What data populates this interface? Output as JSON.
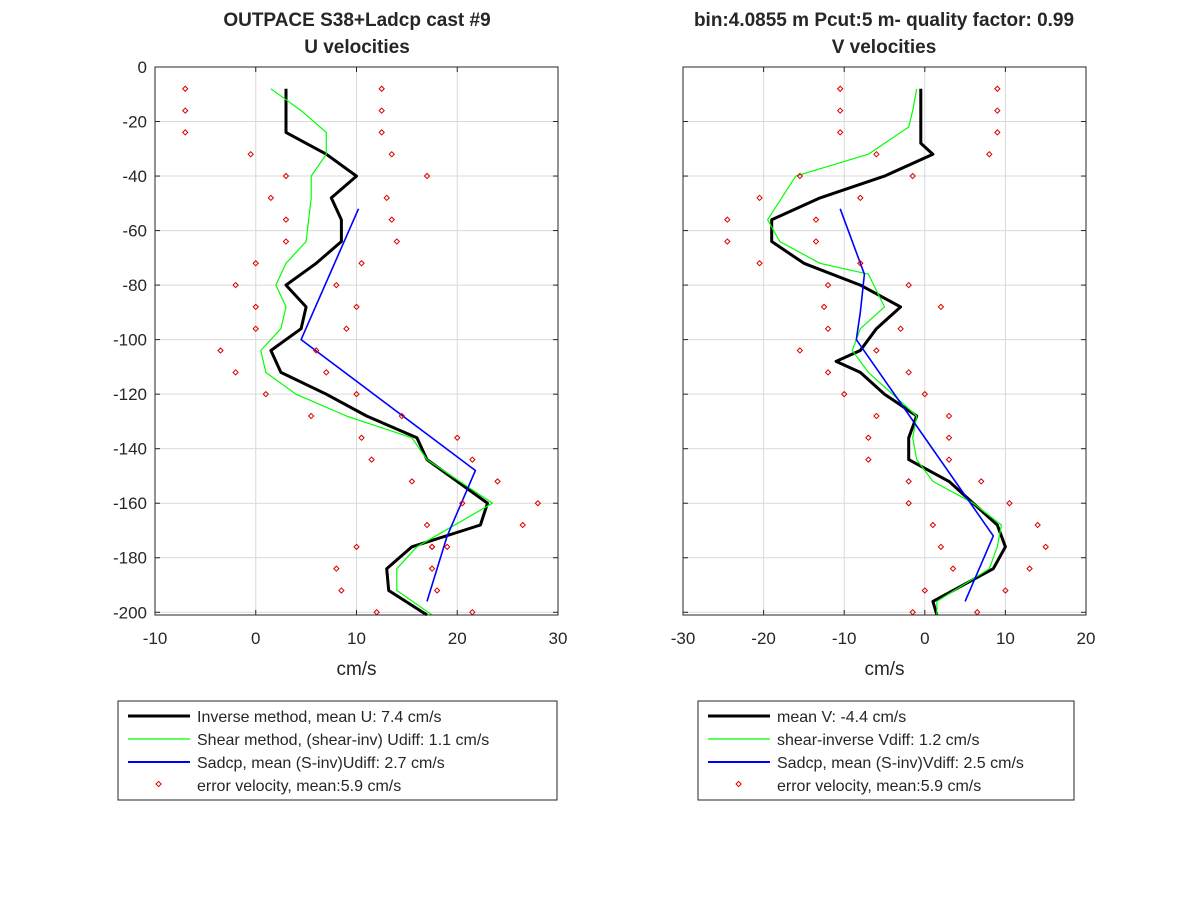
{
  "figure": {
    "title_left_1": "OUTPACE S38+Ladcp cast #9",
    "title_left_2": "U velocities",
    "title_right_1": "bin:4.0855 m  Pcut:5 m- quality factor:  0.99",
    "title_right_2": "V velocities"
  },
  "legend_left": {
    "entries": [
      "Inverse method, mean U:  7.4 cm/s",
      "Shear method, (shear-inv)  Udiff:  1.1 cm/s",
      "Sadcp, mean (S-inv)Udiff: 2.7 cm/s",
      "error velocity, mean:5.9 cm/s"
    ]
  },
  "legend_right": {
    "entries": [
      "mean V:  -4.4 cm/s",
      "shear-inverse Vdiff:  1.2 cm/s",
      "Sadcp, mean (S-inv)Vdiff: 2.5 cm/s",
      "error velocity, mean:5.9 cm/s"
    ]
  },
  "colors": {
    "inverse": "#000000",
    "shear": "#00ff00",
    "sadcp": "#0000ff",
    "error": "#dd0000",
    "grid": "#d9d9d9",
    "axes": "#262626"
  },
  "chart_data": [
    {
      "type": "line",
      "title": "U velocities",
      "xlabel": "cm/s",
      "ylabel": "",
      "xlim": [
        -10,
        30
      ],
      "ylim": [
        -201,
        0
      ],
      "xticks": [
        -10,
        0,
        10,
        20,
        30
      ],
      "yticks": [
        0,
        -20,
        -40,
        -60,
        -80,
        -100,
        -120,
        -140,
        -160,
        -180,
        -200
      ],
      "grid": true,
      "legend_position": "below",
      "series": [
        {
          "name": "Inverse method, mean U:  7.4 cm/s",
          "style": "thick",
          "x": [
            3,
            3,
            3,
            3,
            7,
            10,
            7.5,
            8.5,
            8.5,
            6,
            3,
            5,
            4.5,
            1.5,
            2.5,
            7,
            11,
            16,
            17,
            23,
            22.3,
            15.5,
            13,
            13.2,
            17
          ],
          "y": [
            -8,
            -12,
            -16,
            -24,
            -32,
            -40,
            -48,
            -56,
            -64,
            -72,
            -80,
            -88,
            -96,
            -104,
            -112,
            -120,
            -128,
            -136,
            -144,
            -160,
            -168,
            -176,
            -184,
            -192,
            -201
          ]
        },
        {
          "name": "Shear method, (shear-inv)  Udiff:  1.1 cm/s",
          "style": "thin",
          "x": [
            1.5,
            3,
            4.5,
            7,
            7,
            5.5,
            5.5,
            5,
            3,
            2,
            3,
            2.5,
            0.5,
            1,
            4,
            9,
            15.5,
            17,
            23.5,
            16,
            14,
            14,
            17.5
          ],
          "y": [
            -8,
            -12,
            -16,
            -24,
            -32,
            -40,
            -48,
            -64,
            -72,
            -80,
            -88,
            -96,
            -104,
            -112,
            -120,
            -128,
            -136,
            -144,
            -160,
            -176,
            -184,
            -192,
            -201
          ]
        },
        {
          "name": "Sadcp, mean (S-inv)Udiff: 2.7 cm/s",
          "style": "thin",
          "x": [
            10.2,
            4.5,
            21.8,
            19,
            17
          ],
          "y": [
            -52,
            -100,
            -148,
            -172,
            -196
          ]
        },
        {
          "name": "error velocity, mean:5.9 cm/s",
          "style": "markers",
          "x": [
            -7,
            12.5,
            -7,
            12.5,
            -7,
            12.5,
            -0.5,
            13.5,
            3,
            17,
            1.5,
            13,
            3,
            13.5,
            3,
            14,
            0,
            10.5,
            -2,
            8,
            0,
            10,
            0,
            9,
            -3.5,
            6,
            -2,
            7,
            1,
            10,
            5.5,
            14.5,
            10.5,
            20,
            11.5,
            21.5,
            15.5,
            24,
            20.5,
            28,
            17,
            26.5,
            17.5,
            19,
            10,
            17.5,
            8,
            17.5,
            8.5,
            18,
            12,
            21.5
          ],
          "y": [
            -8,
            -8,
            -16,
            -16,
            -24,
            -24,
            -32,
            -32,
            -40,
            -40,
            -48,
            -48,
            -56,
            -56,
            -64,
            -64,
            -72,
            -72,
            -80,
            -80,
            -88,
            -88,
            -96,
            -96,
            -104,
            -104,
            -112,
            -112,
            -120,
            -120,
            -128,
            -128,
            -136,
            -136,
            -144,
            -144,
            -152,
            -152,
            -160,
            -160,
            -168,
            -168,
            -176,
            -176,
            -176,
            -176,
            -184,
            -184,
            -192,
            -192,
            -200,
            -200
          ]
        }
      ]
    },
    {
      "type": "line",
      "title": "V velocities",
      "xlabel": "cm/s",
      "ylabel": "",
      "xlim": [
        -30,
        20
      ],
      "ylim": [
        -201,
        0
      ],
      "xticks": [
        -30,
        -20,
        -10,
        0,
        10,
        20
      ],
      "yticks": [
        0,
        -20,
        -40,
        -60,
        -80,
        -100,
        -120,
        -140,
        -160,
        -180,
        -200
      ],
      "grid": true,
      "legend_position": "below",
      "series": [
        {
          "name": "mean V:  -4.4 cm/s",
          "style": "thick",
          "x": [
            -0.5,
            -0.5,
            1,
            -5,
            -13,
            -19,
            -19,
            -15,
            -8,
            -3,
            -6,
            -8,
            -11,
            -8,
            -5,
            -1,
            -2,
            -2,
            3,
            9,
            10,
            8.5,
            1,
            1.5
          ],
          "y": [
            -8,
            -28,
            -32,
            -40,
            -48,
            -56,
            -64,
            -72,
            -80,
            -88,
            -96,
            -104,
            -108,
            -112,
            -120,
            -128,
            -136,
            -144,
            -152,
            -168,
            -176,
            -184,
            -196,
            -201
          ]
        },
        {
          "name": "shear-inverse Vdiff:  1.2 cm/s",
          "style": "thin",
          "x": [
            -1,
            -1.5,
            -2,
            -7,
            -16,
            -19.5,
            -18,
            -13,
            -7,
            -5,
            -8,
            -9,
            -7,
            -4,
            -1,
            -1.5,
            -1,
            1,
            6,
            9.5,
            9,
            8,
            1.5,
            1.5
          ],
          "y": [
            -8,
            -16,
            -22,
            -32,
            -40,
            -56,
            -64,
            -72,
            -76,
            -88,
            -96,
            -104,
            -112,
            -120,
            -128,
            -136,
            -144,
            -152,
            -160,
            -168,
            -176,
            -184,
            -196,
            -201
          ]
        },
        {
          "name": "Sadcp, mean (S-inv)Vdiff: 2.5 cm/s",
          "style": "thin",
          "x": [
            -10.5,
            -7.5,
            -8,
            -8.5,
            8.5,
            5
          ],
          "y": [
            -52,
            -76,
            -90,
            -100,
            -172,
            -196
          ]
        },
        {
          "name": "error velocity, mean:5.9 cm/s",
          "style": "markers",
          "x": [
            -10.5,
            9,
            -10.5,
            9,
            -10.5,
            9,
            -6,
            8,
            -15.5,
            -1.5,
            -20.5,
            -8,
            -24.5,
            -13.5,
            -24.5,
            -13.5,
            -20.5,
            -8,
            -12,
            -2,
            -12.5,
            2,
            -12,
            -3,
            -15.5,
            -6,
            -12,
            -2,
            -10,
            0,
            -6,
            3,
            -7,
            3,
            -7,
            3,
            -2,
            7,
            -2,
            10.5,
            1,
            14,
            2,
            15,
            3.5,
            13,
            0,
            10,
            -1.5,
            6.5
          ],
          "y": [
            -8,
            -8,
            -16,
            -16,
            -24,
            -24,
            -32,
            -32,
            -40,
            -40,
            -48,
            -48,
            -56,
            -56,
            -64,
            -64,
            -72,
            -72,
            -80,
            -80,
            -88,
            -88,
            -96,
            -96,
            -104,
            -104,
            -112,
            -112,
            -120,
            -120,
            -128,
            -128,
            -136,
            -136,
            -144,
            -144,
            -152,
            -152,
            -160,
            -160,
            -168,
            -168,
            -176,
            -176,
            -184,
            -184,
            -192,
            -192,
            -200,
            -200
          ]
        }
      ]
    }
  ]
}
